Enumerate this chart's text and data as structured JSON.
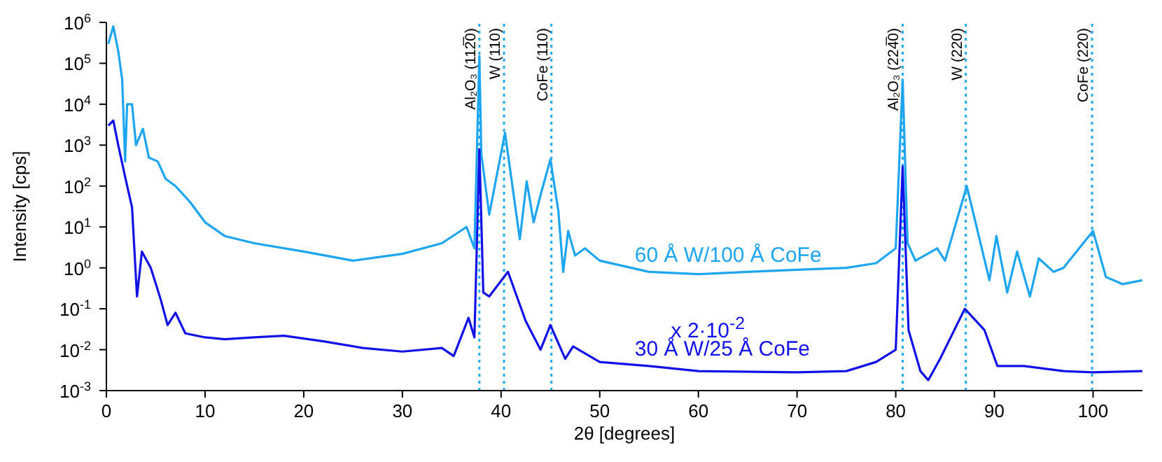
{
  "chart_data": {
    "type": "line",
    "xlabel": "2θ [degrees]",
    "ylabel": "Intensity [cps]",
    "log": "y",
    "xlim": [
      0,
      105
    ],
    "xticks": [
      0,
      10,
      20,
      30,
      40,
      50,
      60,
      70,
      80,
      90,
      100
    ],
    "ylim": [
      0.001,
      1000000
    ],
    "yticks": [
      {
        "value": 0.001,
        "label": "10$^{-3}$"
      },
      {
        "value": 0.01,
        "label": "10$^{-2}$"
      },
      {
        "value": 0.1,
        "label": "10$^{-1}$"
      },
      {
        "value": 1,
        "label": "10$^{0}$"
      },
      {
        "value": 10,
        "label": "10$^{1}$"
      },
      {
        "value": 100,
        "label": "10$^{2}$"
      },
      {
        "value": 1000,
        "label": "10$^{3}$"
      },
      {
        "value": 10000,
        "label": "10$^{4}$"
      },
      {
        "value": 100000,
        "label": "10$^{5}$"
      },
      {
        "value": 1000000,
        "label": "10$^{6}$"
      }
    ],
    "marker": "none",
    "line_style": "solid",
    "series": [
      {
        "name": "60 Å W/100 Å CoFe",
        "color": "#1ea5f0",
        "x": [
          0.2,
          0.7,
          1.2,
          1.6,
          1.9,
          2.1,
          2.6,
          3.0,
          3.7,
          4.3,
          5.2,
          6.0,
          7.0,
          8.5,
          10,
          12,
          15,
          20,
          25,
          30,
          34,
          36.5,
          37.3,
          37.8,
          38.0,
          38.8,
          40.4,
          41.9,
          42.6,
          43.3,
          44.0,
          45.0,
          45.8,
          46.3,
          46.8,
          47.5,
          48.5,
          50,
          55,
          60,
          65,
          70,
          75,
          78,
          80,
          80.7,
          81.2,
          82,
          84.2,
          85,
          87.2,
          89.5,
          90.2,
          91.3,
          92.3,
          93.6,
          94.5,
          96,
          97,
          100,
          101.3,
          103,
          105
        ],
        "values": [
          300000,
          800000,
          200000,
          40000,
          400,
          10000,
          10000,
          1000,
          2500,
          500,
          400,
          150,
          100,
          40,
          13,
          6,
          4,
          2.5,
          1.5,
          2.2,
          4,
          10,
          3,
          150000,
          600,
          20,
          2000,
          5,
          130,
          13,
          60,
          450,
          25,
          0.8,
          8,
          2,
          3,
          1.5,
          0.8,
          0.7,
          0.8,
          0.9,
          1,
          1.3,
          3,
          40000,
          4,
          1.5,
          3,
          1.5,
          100,
          0.5,
          6,
          0.25,
          2.5,
          0.2,
          1.7,
          0.8,
          1,
          8,
          0.6,
          0.4,
          0.5
        ]
      },
      {
        "name": "30 Å W/25 Å CoFe",
        "color": "#1212e6",
        "x": [
          0.2,
          0.7,
          1.2,
          2.0,
          2.6,
          3.1,
          3.6,
          4.5,
          5.5,
          6.2,
          7.0,
          8,
          10,
          12,
          15,
          18,
          22,
          26,
          30,
          34,
          35.2,
          36.7,
          37.3,
          37.8,
          38.2,
          38.8,
          40.7,
          42.5,
          44.0,
          45.0,
          46.5,
          47.3,
          50,
          55,
          60,
          70,
          75,
          78,
          80,
          80.7,
          81.3,
          82.5,
          83.3,
          84.5,
          87,
          89,
          90.3,
          93,
          97,
          100,
          105
        ],
        "values": [
          3000,
          4000,
          1000,
          130,
          30,
          0.2,
          2.5,
          1,
          0.17,
          0.04,
          0.08,
          0.025,
          0.02,
          0.018,
          0.02,
          0.022,
          0.016,
          0.011,
          0.009,
          0.011,
          0.007,
          0.06,
          0.02,
          800,
          0.25,
          0.2,
          0.8,
          0.05,
          0.01,
          0.04,
          0.006,
          0.012,
          0.005,
          0.004,
          0.003,
          0.0028,
          0.003,
          0.005,
          0.01,
          300,
          0.03,
          0.003,
          0.0018,
          0.006,
          0.1,
          0.03,
          0.004,
          0.004,
          0.003,
          0.0028,
          0.003
        ]
      }
    ],
    "ref_lines": [
      {
        "axis": "x",
        "value": 37.8,
        "label": "Al₂O₃ (112̅0)",
        "color": "#22aaee",
        "line_style": "dotted"
      },
      {
        "axis": "x",
        "value": 40.3,
        "label": "W (110)",
        "color": "#22aaee",
        "line_style": "dotted"
      },
      {
        "axis": "x",
        "value": 45.1,
        "label": "CoFe (110)",
        "color": "#22aaee",
        "line_style": "dotted"
      },
      {
        "axis": "x",
        "value": 80.7,
        "label": "Al₂O₃ (224̅0)",
        "color": "#22aaee",
        "line_style": "dotted"
      },
      {
        "axis": "x",
        "value": 87.1,
        "label": "W (220)",
        "color": "#22aaee",
        "line_style": "dotted"
      },
      {
        "axis": "x",
        "value": 99.9,
        "label": "CoFe (220)",
        "color": "#22aaee",
        "line_style": "dotted"
      }
    ],
    "annotations": [
      "x 2·10$^{-2}$"
    ]
  }
}
